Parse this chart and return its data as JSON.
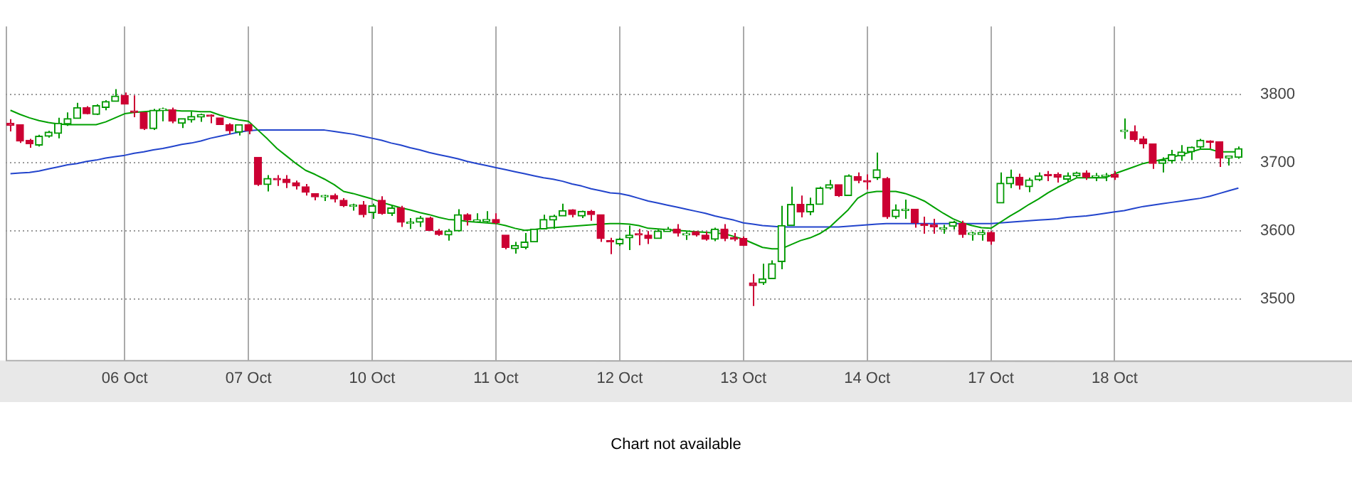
{
  "chart_data": {
    "type": "candlestick",
    "categories": [
      null,
      null,
      null,
      null,
      null,
      null,
      null,
      null,
      null,
      null,
      null,
      null,
      "06 Oct",
      null,
      null,
      null,
      null,
      null,
      null,
      null,
      null,
      null,
      null,
      null,
      null,
      "07 Oct",
      null,
      null,
      null,
      null,
      null,
      null,
      null,
      null,
      null,
      null,
      null,
      null,
      "10 Oct",
      null,
      null,
      null,
      null,
      null,
      null,
      null,
      null,
      null,
      null,
      null,
      null,
      "11 Oct",
      null,
      null,
      null,
      null,
      null,
      null,
      null,
      null,
      null,
      null,
      null,
      null,
      "12 Oct",
      null,
      null,
      null,
      null,
      null,
      null,
      null,
      null,
      null,
      null,
      null,
      null,
      "13 Oct",
      null,
      null,
      null,
      null,
      null,
      null,
      null,
      null,
      null,
      null,
      null,
      null,
      "14 Oct",
      null,
      null,
      null,
      null,
      null,
      null,
      null,
      null,
      null,
      null,
      null,
      null,
      "17 Oct",
      null,
      null,
      null,
      null,
      null,
      null,
      null,
      null,
      null,
      null,
      null,
      null,
      "18 Oct",
      null,
      null,
      null,
      null,
      null,
      null,
      null,
      null,
      null,
      null,
      null,
      null,
      null
    ],
    "ohlc": [
      [
        3758,
        3764,
        3746,
        3755
      ],
      [
        3756,
        3756,
        3729,
        3732
      ],
      [
        3733,
        3735,
        3722,
        3728
      ],
      [
        3726,
        3741,
        3724,
        3739
      ],
      [
        3739,
        3747,
        3737,
        3745
      ],
      [
        3743,
        3766,
        3736,
        3758
      ],
      [
        3757,
        3774,
        3754,
        3765
      ],
      [
        3765,
        3788,
        3765,
        3781
      ],
      [
        3781,
        3783,
        3771,
        3772
      ],
      [
        3771,
        3786,
        3770,
        3784
      ],
      [
        3781,
        3792,
        3777,
        3790
      ],
      [
        3790,
        3808,
        3790,
        3798
      ],
      [
        3799,
        3803,
        3786,
        3786
      ],
      [
        3776,
        3799,
        3767,
        3774
      ],
      [
        3774,
        3774,
        3748,
        3750
      ],
      [
        3750,
        3779,
        3748,
        3777
      ],
      [
        3777,
        3781,
        3761,
        3779
      ],
      [
        3778,
        3781,
        3758,
        3761
      ],
      [
        3758,
        3765,
        3751,
        3765
      ],
      [
        3763,
        3775,
        3759,
        3768
      ],
      [
        3767,
        3772,
        3760,
        3771
      ],
      [
        3769,
        3771,
        3758,
        3768
      ],
      [
        3766,
        3766,
        3756,
        3756
      ],
      [
        3756,
        3758,
        3742,
        3747
      ],
      [
        3745,
        3756,
        3740,
        3756
      ],
      [
        3756,
        3757,
        3742,
        3747
      ],
      [
        3708,
        3708,
        3666,
        3668
      ],
      [
        3668,
        3682,
        3658,
        3677
      ],
      [
        3677,
        3682,
        3666,
        3675
      ],
      [
        3676,
        3682,
        3663,
        3671
      ],
      [
        3671,
        3674,
        3661,
        3666
      ],
      [
        3665,
        3669,
        3652,
        3657
      ],
      [
        3655,
        3655,
        3645,
        3650
      ],
      [
        3650,
        3653,
        3644,
        3651
      ],
      [
        3652,
        3655,
        3642,
        3647
      ],
      [
        3645,
        3648,
        3635,
        3637
      ],
      [
        3636,
        3640,
        3630,
        3637
      ],
      [
        3638,
        3644,
        3620,
        3624
      ],
      [
        3627,
        3640,
        3618,
        3637
      ],
      [
        3645,
        3651,
        3624,
        3626
      ],
      [
        3626,
        3637,
        3622,
        3634
      ],
      [
        3634,
        3637,
        3606,
        3613
      ],
      [
        3611,
        3619,
        3603,
        3612
      ],
      [
        3613,
        3622,
        3606,
        3619
      ],
      [
        3619,
        3621,
        3600,
        3601
      ],
      [
        3600,
        3603,
        3593,
        3595
      ],
      [
        3594,
        3603,
        3586,
        3600
      ],
      [
        3600,
        3632,
        3599,
        3624
      ],
      [
        3624,
        3626,
        3608,
        3616
      ],
      [
        3614,
        3626,
        3613,
        3616
      ],
      [
        3614,
        3629,
        3613,
        3617
      ],
      [
        3617,
        3626,
        3610,
        3612
      ],
      [
        3594,
        3594,
        3573,
        3576
      ],
      [
        3574,
        3584,
        3567,
        3579
      ],
      [
        3576,
        3597,
        3573,
        3584
      ],
      [
        3584,
        3603,
        3584,
        3603
      ],
      [
        3603,
        3624,
        3603,
        3617
      ],
      [
        3616,
        3624,
        3603,
        3622
      ],
      [
        3622,
        3640,
        3622,
        3630
      ],
      [
        3631,
        3632,
        3620,
        3624
      ],
      [
        3622,
        3630,
        3619,
        3629
      ],
      [
        3629,
        3631,
        3615,
        3624
      ],
      [
        3624,
        3624,
        3584,
        3589
      ],
      [
        3586,
        3590,
        3566,
        3584
      ],
      [
        3581,
        3590,
        3578,
        3588
      ],
      [
        3590,
        3608,
        3572,
        3594
      ],
      [
        3596,
        3603,
        3579,
        3594
      ],
      [
        3594,
        3600,
        3581,
        3589
      ],
      [
        3589,
        3602,
        3589,
        3600
      ],
      [
        3599,
        3606,
        3599,
        3603
      ],
      [
        3603,
        3610,
        3592,
        3597
      ],
      [
        3594,
        3599,
        3587,
        3596
      ],
      [
        3599,
        3600,
        3592,
        3594
      ],
      [
        3594,
        3599,
        3586,
        3588
      ],
      [
        3588,
        3605,
        3585,
        3603
      ],
      [
        3603,
        3610,
        3585,
        3589
      ],
      [
        3590,
        3597,
        3585,
        3588
      ],
      [
        3589,
        3592,
        3578,
        3579
      ],
      [
        3524,
        3537,
        3490,
        3520
      ],
      [
        3524,
        3552,
        3521,
        3530
      ],
      [
        3530,
        3557,
        3530,
        3552
      ],
      [
        3555,
        3637,
        3544,
        3608
      ],
      [
        3608,
        3665,
        3608,
        3639
      ],
      [
        3639,
        3652,
        3620,
        3628
      ],
      [
        3628,
        3649,
        3623,
        3639
      ],
      [
        3639,
        3665,
        3639,
        3663
      ],
      [
        3663,
        3675,
        3661,
        3668
      ],
      [
        3668,
        3668,
        3650,
        3652
      ],
      [
        3652,
        3683,
        3652,
        3681
      ],
      [
        3680,
        3686,
        3670,
        3674
      ],
      [
        3673,
        3683,
        3661,
        3672
      ],
      [
        3678,
        3715,
        3675,
        3690
      ],
      [
        3677,
        3679,
        3618,
        3621
      ],
      [
        3621,
        3639,
        3618,
        3631
      ],
      [
        3630,
        3646,
        3618,
        3631
      ],
      [
        3632,
        3632,
        3605,
        3612
      ],
      [
        3610,
        3621,
        3596,
        3608
      ],
      [
        3609,
        3618,
        3596,
        3606
      ],
      [
        3603,
        3609,
        3596,
        3604
      ],
      [
        3607,
        3615,
        3602,
        3613
      ],
      [
        3611,
        3615,
        3590,
        3595
      ],
      [
        3595,
        3599,
        3586,
        3596
      ],
      [
        3595,
        3602,
        3586,
        3598
      ],
      [
        3598,
        3600,
        3580,
        3585
      ],
      [
        3641,
        3686,
        3641,
        3670
      ],
      [
        3669,
        3690,
        3663,
        3679
      ],
      [
        3679,
        3684,
        3661,
        3667
      ],
      [
        3665,
        3678,
        3657,
        3675
      ],
      [
        3675,
        3686,
        3673,
        3681
      ],
      [
        3683,
        3688,
        3673,
        3681
      ],
      [
        3683,
        3686,
        3671,
        3679
      ],
      [
        3676,
        3686,
        3671,
        3681
      ],
      [
        3681,
        3687,
        3679,
        3685
      ],
      [
        3685,
        3689,
        3675,
        3679
      ],
      [
        3679,
        3685,
        3673,
        3681
      ],
      [
        3680,
        3685,
        3673,
        3681
      ],
      [
        3683,
        3688,
        3675,
        3679
      ],
      [
        3746,
        3765,
        3735,
        3747
      ],
      [
        3746,
        3755,
        3731,
        3734
      ],
      [
        3735,
        3739,
        3721,
        3728
      ],
      [
        3728,
        3728,
        3691,
        3699
      ],
      [
        3699,
        3708,
        3686,
        3704
      ],
      [
        3703,
        3719,
        3699,
        3712
      ],
      [
        3710,
        3726,
        3703,
        3716
      ],
      [
        3716,
        3724,
        3704,
        3723
      ],
      [
        3723,
        3735,
        3721,
        3733
      ],
      [
        3731,
        3733,
        3721,
        3730
      ],
      [
        3731,
        3731,
        3694,
        3707
      ],
      [
        3707,
        3710,
        3696,
        3710
      ],
      [
        3708,
        3724,
        3706,
        3721
      ]
    ],
    "series": [
      {
        "type": "line",
        "color": "#00a000",
        "values": [
          3777,
          3771,
          3766,
          3762,
          3759,
          3757,
          3756,
          3756,
          3756,
          3756,
          3760,
          3766,
          3772,
          3774,
          3775,
          3776,
          3777,
          3777,
          3776,
          3776,
          3775,
          3775,
          3770,
          3766,
          3763,
          3761,
          3748,
          3735,
          3721,
          3710,
          3699,
          3689,
          3683,
          3676,
          3668,
          3658,
          3655,
          3651,
          3647,
          3642,
          3638,
          3634,
          3631,
          3627,
          3624,
          3620,
          3617,
          3616,
          3614,
          3613,
          3612,
          3611,
          3608,
          3604,
          3601,
          3602,
          3604,
          3605,
          3606,
          3607,
          3608,
          3609,
          3610,
          3611,
          3611,
          3610,
          3608,
          3604,
          3603,
          3602,
          3601,
          3600,
          3599,
          3598,
          3597,
          3596,
          3592,
          3588,
          3582,
          3576,
          3574,
          3574,
          3580,
          3586,
          3590,
          3596,
          3605,
          3618,
          3631,
          3648,
          3656,
          3658,
          3658,
          3658,
          3655,
          3650,
          3644,
          3635,
          3626,
          3618,
          3612,
          3608,
          3605,
          3604,
          3613,
          3622,
          3630,
          3639,
          3647,
          3656,
          3664,
          3671,
          3678,
          3678,
          3678,
          3678,
          3684,
          3689,
          3694,
          3699,
          3702,
          3705,
          3708,
          3712,
          3716,
          3720,
          3720,
          3716,
          3716,
          3716
        ]
      },
      {
        "type": "line",
        "color": "#2244cc",
        "values": [
          3684,
          3685,
          3686,
          3688,
          3691,
          3694,
          3697,
          3699,
          3702,
          3704,
          3707,
          3709,
          3711,
          3714,
          3716,
          3719,
          3721,
          3724,
          3727,
          3729,
          3732,
          3736,
          3739,
          3742,
          3745,
          3747,
          3748,
          3748,
          3748,
          3748,
          3748,
          3748,
          3748,
          3748,
          3746,
          3744,
          3742,
          3739,
          3736,
          3733,
          3729,
          3726,
          3722,
          3719,
          3715,
          3712,
          3709,
          3706,
          3702,
          3699,
          3696,
          3693,
          3690,
          3687,
          3684,
          3681,
          3678,
          3676,
          3673,
          3669,
          3666,
          3662,
          3659,
          3656,
          3655,
          3652,
          3648,
          3644,
          3641,
          3638,
          3635,
          3632,
          3629,
          3626,
          3622,
          3619,
          3616,
          3612,
          3610,
          3608,
          3607,
          3606,
          3606,
          3606,
          3606,
          3606,
          3606,
          3606,
          3607,
          3608,
          3609,
          3610,
          3611,
          3611,
          3611,
          3611,
          3611,
          3611,
          3611,
          3611,
          3611,
          3611,
          3611,
          3611,
          3612,
          3613,
          3614,
          3615,
          3616,
          3617,
          3618,
          3620,
          3621,
          3622,
          3624,
          3626,
          3628,
          3630,
          3633,
          3636,
          3638,
          3640,
          3642,
          3644,
          3646,
          3648,
          3651,
          3655,
          3659,
          3663
        ]
      }
    ],
    "ylim": [
      3410,
      3900
    ],
    "yticks": [
      3500,
      3600,
      3700,
      3800
    ],
    "grid": true,
    "annotations": [
      "Chart not available"
    ]
  }
}
